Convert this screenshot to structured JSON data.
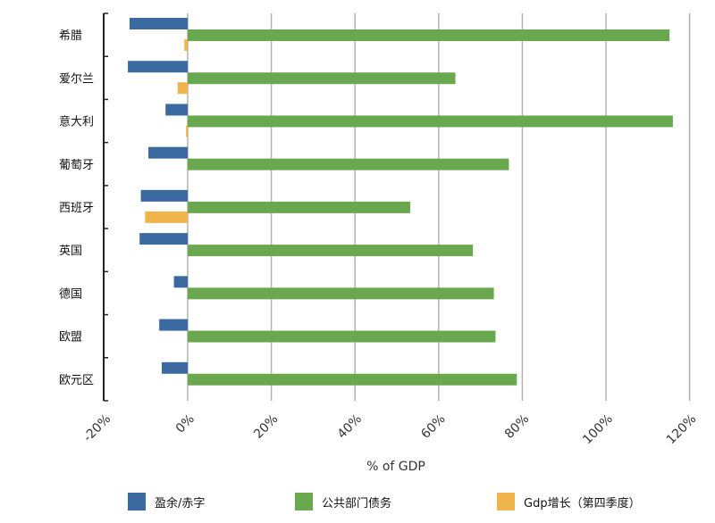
{
  "chart_data": {
    "type": "bar",
    "orientation": "horizontal",
    "categories": [
      "希腊",
      "爱尔兰",
      "意大利",
      "葡萄牙",
      "西班牙",
      "英国",
      "德国",
      "欧盟",
      "欧元区"
    ],
    "series": [
      {
        "name": "盈余/赤字",
        "color": "#3b6aa0",
        "values": [
          -13.9,
          -14.3,
          -5.3,
          -9.4,
          -11.2,
          -11.5,
          -3.3,
          -6.8,
          -6.2
        ]
      },
      {
        "name": "公共部门债务",
        "color": "#6aa84f",
        "values": [
          115.2,
          64.0,
          116.0,
          76.8,
          53.2,
          68.2,
          73.2,
          73.6,
          78.7
        ]
      },
      {
        "name": "Gdp增长（第四季度）",
        "color": "#f0b44c",
        "values": [
          -0.8,
          -2.4,
          -0.4,
          0,
          -10.2,
          0,
          0,
          0,
          0
        ]
      }
    ],
    "xlabel": "% of GDP",
    "xlim": [
      -20,
      120
    ],
    "xticks": [
      -20,
      0,
      20,
      40,
      60,
      80,
      100,
      120
    ],
    "xtick_labels": [
      "-20%",
      "0%",
      "20%",
      "40%",
      "60%",
      "80%",
      "100%",
      "120%"
    ],
    "grid": "vertical",
    "legend": "bottom"
  }
}
